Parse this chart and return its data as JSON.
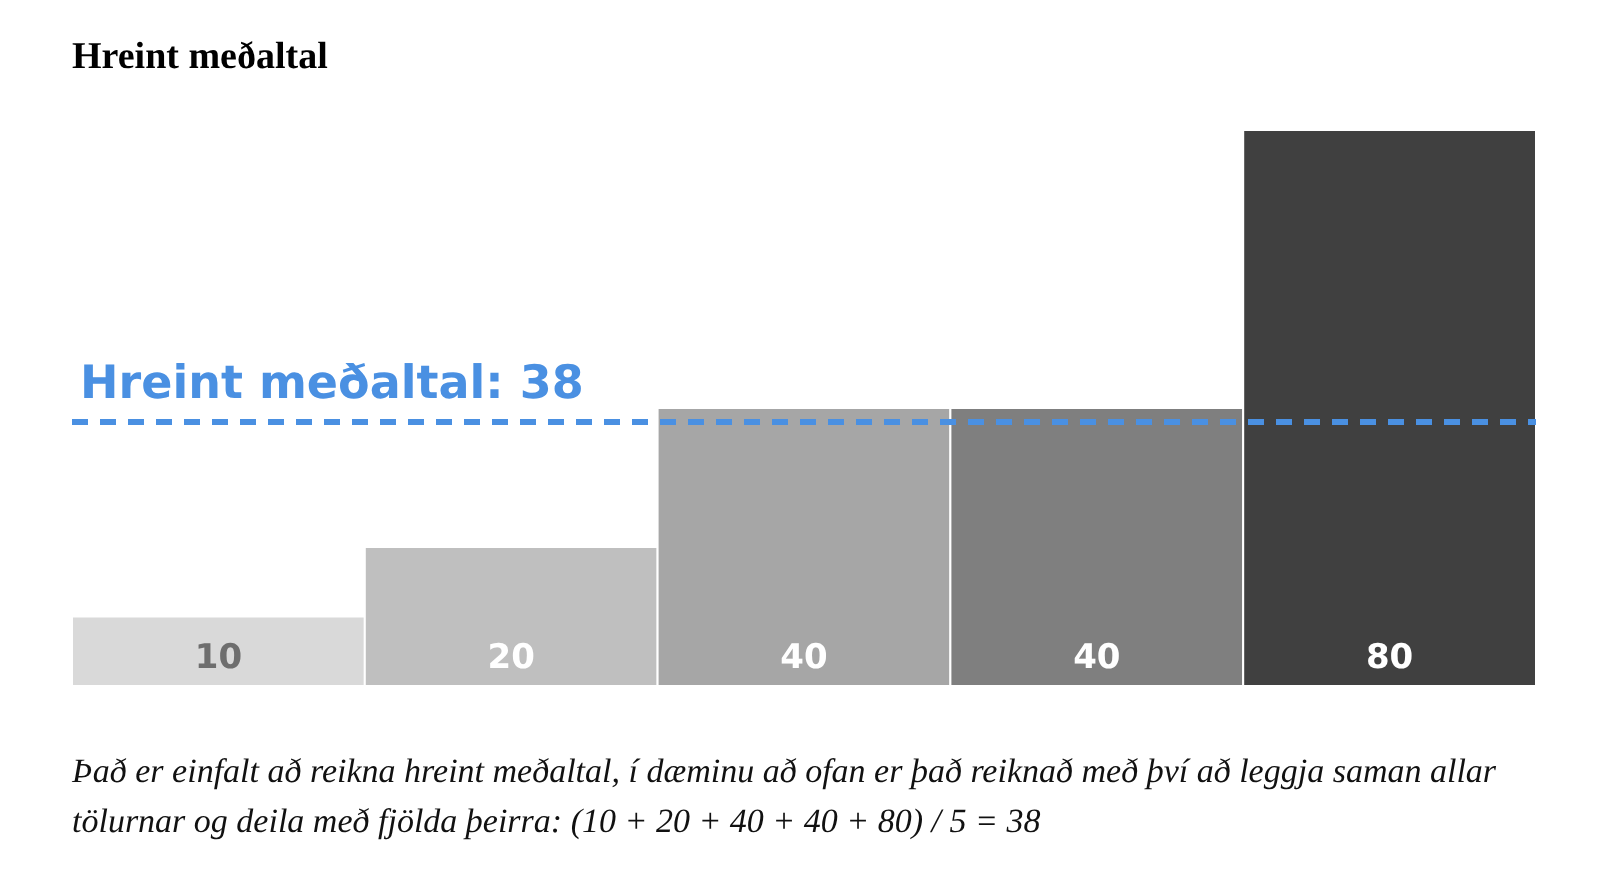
{
  "chart_data": {
    "type": "bar",
    "title": "Hreint meðaltal",
    "categories": [
      null,
      null,
      null,
      null,
      null
    ],
    "values": [
      10,
      20,
      40,
      40,
      80
    ],
    "colors": [
      "#d9d9d9",
      "#bfbfbf",
      "#a6a6a6",
      "#7f7f7f",
      "#404040"
    ],
    "data_labels": true,
    "ref_lines": [
      {
        "axis": "y",
        "value": 38,
        "label": "Hreint meðaltal: 38",
        "color": "#4a90e2",
        "line_style": "dashed"
      }
    ],
    "annotations": [
      "Það er einfalt að reikna hreint meðaltal, í dæminu að ofan er það reiknað með því að leggja saman allar tölurnar og deila með fjölda þeirra: (10 + 20 + 40 + 40 + 80) / 5 = 38"
    ]
  }
}
